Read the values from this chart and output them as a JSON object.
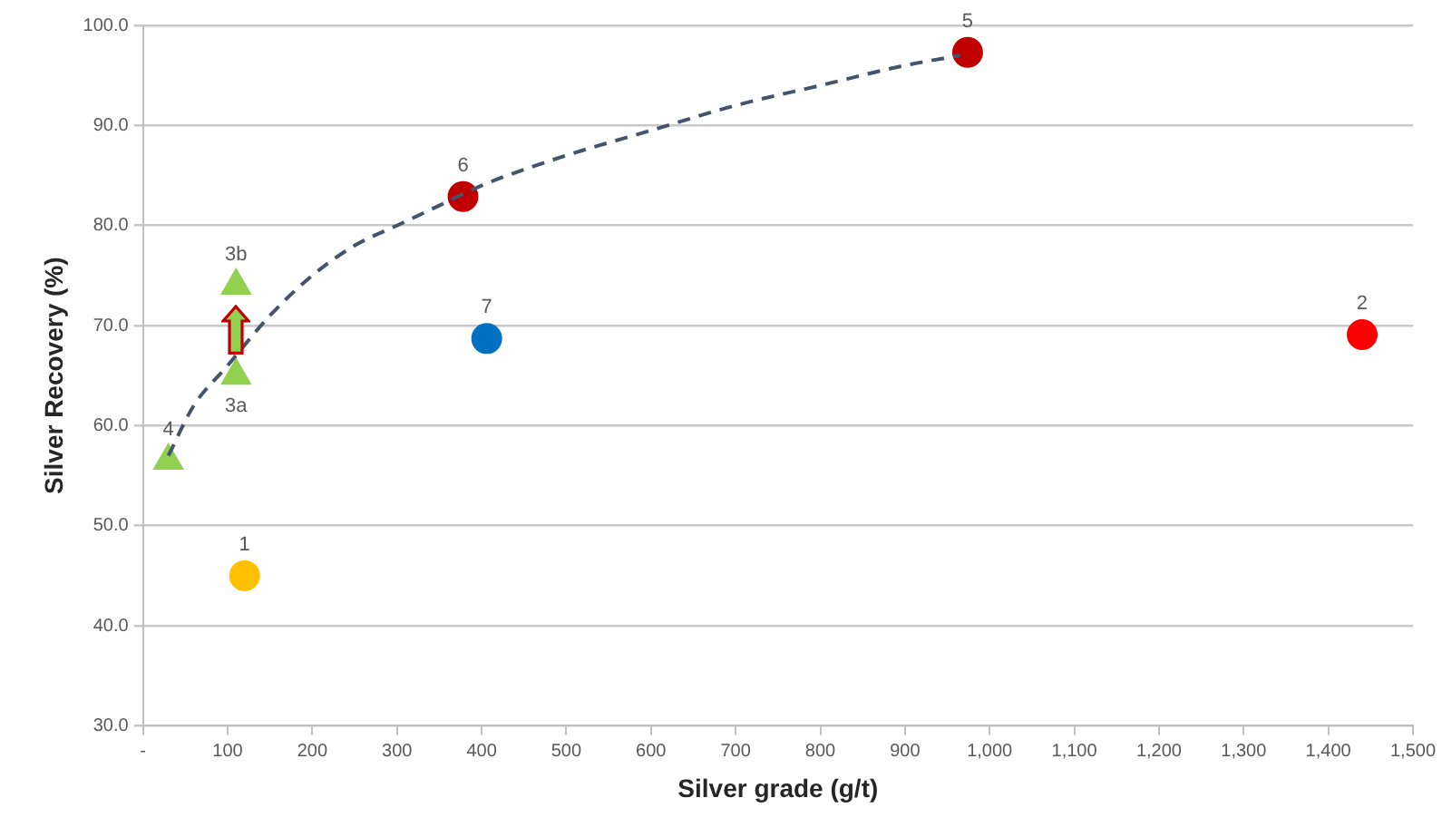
{
  "chart_data": {
    "type": "scatter",
    "xlabel": "Silver grade (g/t)",
    "ylabel": "Silver Recovery (%)",
    "xlim": [
      0,
      1500
    ],
    "ylim": [
      30,
      100
    ],
    "xticks": [
      {
        "value": 0,
        "label": "-"
      },
      100,
      200,
      300,
      400,
      500,
      600,
      700,
      800,
      900,
      {
        "value": 1000,
        "label": "1,000"
      },
      {
        "value": 1100,
        "label": "1,100"
      },
      {
        "value": 1200,
        "label": "1,200"
      },
      {
        "value": 1300,
        "label": "1,300"
      },
      {
        "value": 1400,
        "label": "1,400"
      },
      {
        "value": 1500,
        "label": "1,500"
      }
    ],
    "yticks": [
      {
        "value": 30,
        "label": "30.0"
      },
      {
        "value": 40,
        "label": "40.0"
      },
      {
        "value": 50,
        "label": "50.0"
      },
      {
        "value": 60,
        "label": "60.0"
      },
      {
        "value": 70,
        "label": "70.0"
      },
      {
        "value": 80,
        "label": "80.0"
      },
      {
        "value": 90,
        "label": "90.0"
      },
      {
        "value": 100,
        "label": "100.0"
      }
    ],
    "grid": "y",
    "series": [
      {
        "type": "line",
        "x": [
          30,
          60,
          100,
          150,
          200,
          250,
          300,
          350,
          400,
          500,
          600,
          700,
          800,
          900,
          965
        ],
        "values": [
          57,
          62,
          66,
          71,
          75,
          78,
          80,
          82,
          84,
          87,
          89.5,
          92,
          94,
          96,
          97
        ],
        "color": "#44546a",
        "line_style": "dashed",
        "marker": "none"
      },
      {
        "marker": "triangle",
        "color": "#92d050",
        "x": [
          110,
          110,
          30
        ],
        "values": [
          65,
          74,
          56.5
        ]
      },
      {
        "marker": "circle",
        "x": [
          120,
          1440,
          974,
          378,
          406
        ],
        "values": [
          45,
          69.1,
          97.3,
          82.9,
          68.7
        ],
        "colors": [
          "#ffc000",
          "#ff0000",
          "#c00000",
          "#c00000",
          "#0070c0"
        ]
      }
    ],
    "annotations": [
      {
        "text": "1",
        "x": 120,
        "y": 45
      },
      {
        "text": "2",
        "x": 1440,
        "y": 69.1
      },
      {
        "text": "3b",
        "x": 110,
        "y": 74
      },
      {
        "text": "3a",
        "x": 110,
        "y": 65
      },
      {
        "text": "4",
        "x": 30,
        "y": 56.5
      },
      {
        "text": "5",
        "x": 974,
        "y": 97.3
      },
      {
        "text": "6",
        "x": 378,
        "y": 82.9
      },
      {
        "text": "7",
        "x": 406,
        "y": 68.7
      }
    ]
  }
}
